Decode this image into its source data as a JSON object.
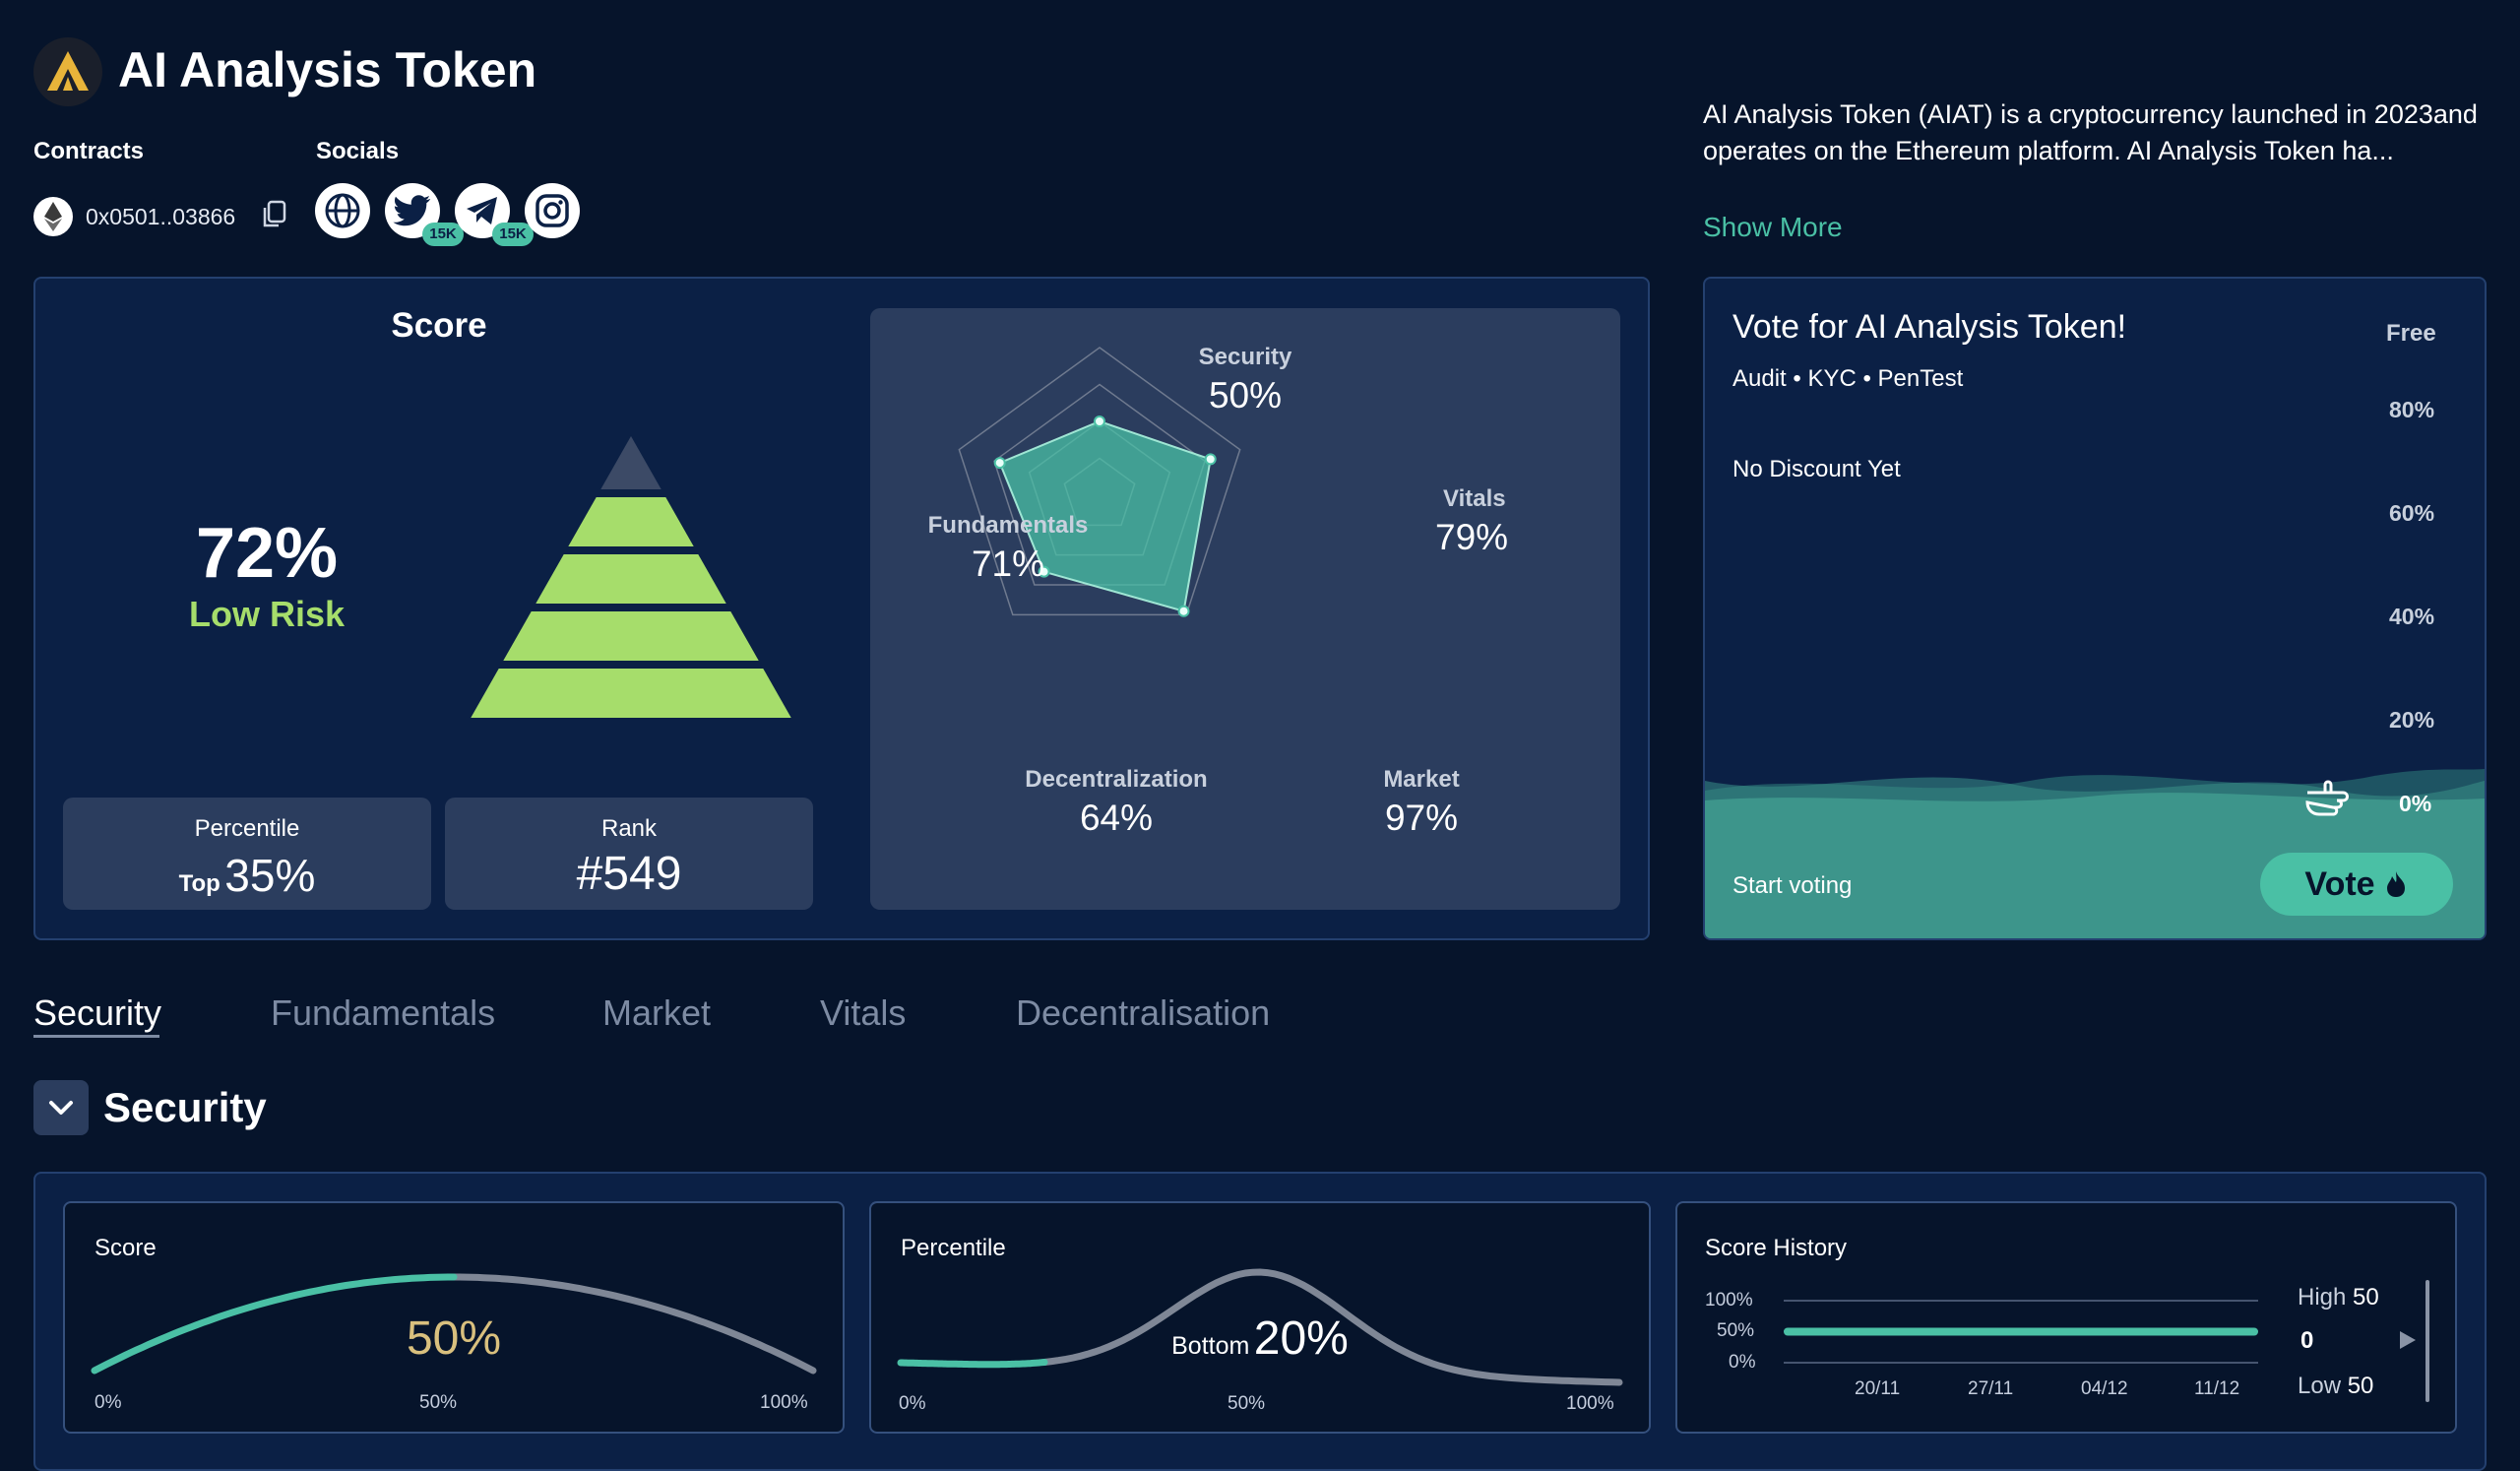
{
  "header": {
    "title": "AI Analysis Token",
    "contracts_label": "Contracts",
    "socials_label": "Socials",
    "contract_address": "0x0501..03866",
    "twitter_count": "15K",
    "telegram_count": "15K",
    "icons": [
      "ethereum-icon",
      "copy-icon",
      "globe-icon",
      "twitter-icon",
      "telegram-icon",
      "instagram-icon"
    ]
  },
  "description": {
    "text": "AI Analysis Token (AIAT) is a cryptocurrency launched in 2023and operates on the Ethereum platform. AI Analysis Token ha...",
    "show_more": "Show More"
  },
  "score": {
    "title": "Score",
    "value": "72%",
    "risk": "Low Risk",
    "percentile_label": "Percentile",
    "percentile_prefix": "Top",
    "percentile_value": "35%",
    "rank_label": "Rank",
    "rank_value": "#549",
    "pyramid_filled_levels": 4,
    "pyramid_levels": 5
  },
  "radar": {
    "axes": [
      {
        "label": "Security",
        "value": "50%",
        "v": 50
      },
      {
        "label": "Vitals",
        "value": "79%",
        "v": 79
      },
      {
        "label": "Market",
        "value": "97%",
        "v": 97
      },
      {
        "label": "Decentralization",
        "value": "64%",
        "v": 64
      },
      {
        "label": "Fundamentals",
        "value": "71%",
        "v": 71
      }
    ]
  },
  "vote": {
    "title": "Vote for AI Analysis Token!",
    "tags": "Audit • KYC • PenTest",
    "free_label": "Free",
    "discount": "No Discount Yet",
    "levels": [
      "80%",
      "60%",
      "40%",
      "20%",
      "0%"
    ],
    "start": "Start voting",
    "button": "Vote"
  },
  "tabs": [
    "Security",
    "Fundamentals",
    "Market",
    "Vitals",
    "Decentralisation"
  ],
  "active_tab": "Security",
  "section": {
    "title": "Security"
  },
  "cards": {
    "score": {
      "label": "Score",
      "value": "50%",
      "v": 0.5,
      "ticks": [
        "0%",
        "50%",
        "100%"
      ]
    },
    "percentile": {
      "label": "Percentile",
      "prefix": "Bottom",
      "value": "20%",
      "v": 0.2,
      "ticks": [
        "0%",
        "50%",
        "100%"
      ]
    },
    "history": {
      "label": "Score History",
      "y_ticks": [
        "100%",
        "50%",
        "0%"
      ],
      "x_ticks": [
        "20/11",
        "27/11",
        "04/12",
        "11/12"
      ],
      "high_label": "High",
      "high_value": "50",
      "current": "0",
      "low_label": "Low",
      "low_value": "50",
      "values": [
        50,
        50,
        50,
        50
      ]
    }
  },
  "colors": {
    "background": "#06142b",
    "panel": "#0b2045",
    "accent_teal": "#4ac0a5",
    "risk_green": "#a6dd6b",
    "score_gold": "#d9c07e"
  }
}
